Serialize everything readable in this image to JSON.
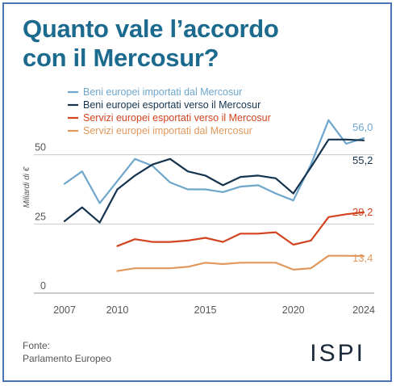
{
  "title": [
    "Quanto vale l’accordo",
    "con il Mercosur?"
  ],
  "source": [
    "Fonte:",
    "Parlamento Europeo"
  ],
  "logo": "ISPI",
  "colors": {
    "title": "#1d6a8f",
    "frame": "#4a74b8"
  },
  "chart_data": {
    "type": "line",
    "ylabel": "Miliardi di €",
    "ylim": [
      0,
      75
    ],
    "yticks": [
      0,
      25,
      50
    ],
    "xlim": [
      2007,
      2024
    ],
    "xticks": [
      2007,
      2010,
      2015,
      2020,
      2024
    ],
    "grid": "horizontal",
    "legend": "top-left",
    "series": [
      {
        "name": "Beni europei importati dal Mercosur",
        "color": "#6ea6cc",
        "x": [
          2007,
          2008,
          2009,
          2010,
          2011,
          2012,
          2013,
          2014,
          2015,
          2016,
          2017,
          2018,
          2019,
          2020,
          2021,
          2022,
          2023,
          2024
        ],
        "values": [
          39.5,
          44,
          32.5,
          40.5,
          48.5,
          46,
          40,
          37.5,
          37.5,
          36.5,
          38.5,
          39,
          36,
          33.5,
          46.5,
          62.5,
          54,
          56
        ],
        "end_label": "56,0"
      },
      {
        "name": "Beni europei esportati verso il Mercosur",
        "color": "#14334e",
        "x": [
          2007,
          2008,
          2009,
          2010,
          2011,
          2012,
          2013,
          2014,
          2015,
          2016,
          2017,
          2018,
          2019,
          2020,
          2021,
          2022,
          2023,
          2024
        ],
        "values": [
          26,
          31,
          25.5,
          37.5,
          42.5,
          46.5,
          48.5,
          44,
          42.5,
          39,
          42,
          42.5,
          41.5,
          36,
          45.5,
          55.5,
          55.5,
          55.2
        ],
        "end_label": "55,2"
      },
      {
        "name": "Servizi europei esportati verso il Mercosur",
        "color": "#d2431f",
        "x": [
          2010,
          2011,
          2012,
          2013,
          2014,
          2015,
          2016,
          2017,
          2018,
          2019,
          2020,
          2021,
          2022,
          2023,
          2024
        ],
        "values": [
          17,
          19.5,
          18.5,
          18.5,
          19,
          20,
          18.5,
          21.5,
          21.5,
          22,
          17.5,
          19,
          27.5,
          28.5,
          29.2
        ],
        "end_label": "29,2"
      },
      {
        "name": "Servizi europei importati dal Mercosur",
        "color": "#e0985c",
        "x": [
          2010,
          2011,
          2012,
          2013,
          2014,
          2015,
          2016,
          2017,
          2018,
          2019,
          2020,
          2021,
          2022,
          2023,
          2024
        ],
        "values": [
          8,
          9,
          9,
          9,
          9.5,
          11,
          10.5,
          11,
          11,
          11,
          8.5,
          9,
          13.5,
          13.5,
          13.4
        ],
        "end_label": "13,4"
      }
    ]
  }
}
